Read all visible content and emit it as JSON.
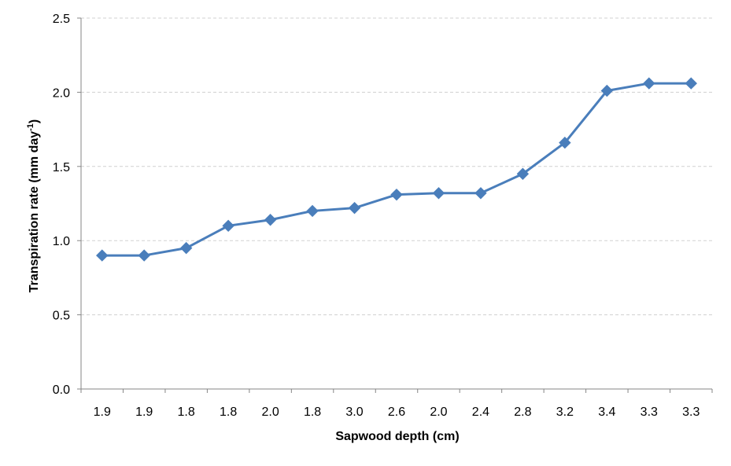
{
  "chart_data": {
    "type": "line",
    "title": "",
    "xlabel": "Sapwood depth (cm)",
    "ylabel": {
      "main": "Transpiration rate (mm day",
      "sup": "-1",
      "close": ")"
    },
    "categories": [
      "1.9",
      "1.9",
      "1.8",
      "1.8",
      "2.0",
      "1.8",
      "3.0",
      "2.6",
      "2.0",
      "2.4",
      "2.8",
      "3.2",
      "3.4",
      "3.3",
      "3.3"
    ],
    "series": [
      {
        "values": [
          0.9,
          0.9,
          0.95,
          1.1,
          1.14,
          1.2,
          1.22,
          1.31,
          1.32,
          1.32,
          1.45,
          1.66,
          2.01,
          2.06,
          2.06
        ],
        "color": "#4a7ebb",
        "marker": "diamond"
      }
    ],
    "ylim": [
      0,
      2.5
    ],
    "yticks": [
      "0.0",
      "0.5",
      "1.0",
      "1.5",
      "2.0",
      "2.5"
    ],
    "grid": true,
    "grid_style": "dashed",
    "legend": "none"
  }
}
